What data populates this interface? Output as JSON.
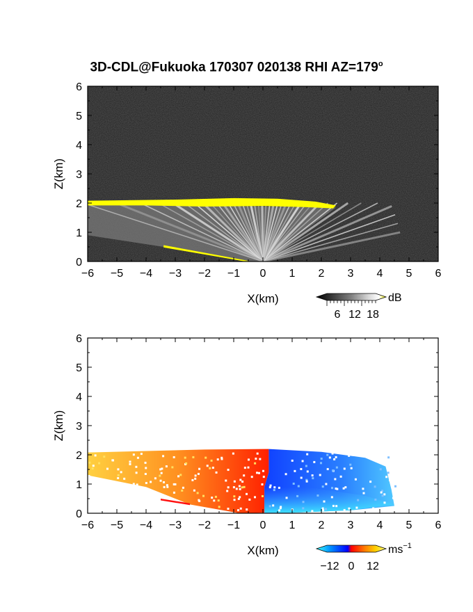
{
  "figure": {
    "title": "3D-CDL@Fukuoka 170307 020138 RHI AZ=179",
    "title_superscript": "o"
  },
  "chart_data": [
    {
      "type": "heatmap",
      "panel": "top",
      "quantity": "backscatter intensity",
      "xlabel": "X(km)",
      "ylabel": "Z(km)",
      "xlim": [
        -6,
        6
      ],
      "ylim": [
        0,
        6
      ],
      "xticks": [
        "−6",
        "−5",
        "−4",
        "−3",
        "−2",
        "−1",
        "0",
        "1",
        "2",
        "3",
        "4",
        "5",
        "6"
      ],
      "yticks": [
        "0",
        "1",
        "2",
        "3",
        "4",
        "5",
        "6"
      ],
      "background": "noise (black/dark gray)",
      "features": [
        {
          "name": "cloud base layer",
          "color": "#ffff00",
          "x_range": [
            -6,
            2.5
          ],
          "z": 2.0
        },
        {
          "name": "surface echo",
          "color": "#ffff00",
          "x_range": [
            -3.4,
            -0.4
          ],
          "z_range": [
            0.5,
            0.0
          ]
        },
        {
          "name": "radial lidar beams",
          "color": "#cccccc",
          "origin": [
            0,
            0
          ]
        }
      ],
      "colorbar": {
        "ticks": [
          "6",
          "12",
          "18"
        ],
        "unit": "dB",
        "colors": [
          "#000000",
          "#404040",
          "#808080",
          "#c0c0c0",
          "#ffffff",
          "#ffff00"
        ]
      }
    },
    {
      "type": "heatmap",
      "panel": "bottom",
      "quantity": "radial velocity",
      "xlabel": "X(km)",
      "ylabel": "Z(km)",
      "xlim": [
        -6,
        6
      ],
      "ylim": [
        0,
        6
      ],
      "xticks": [
        "−6",
        "−5",
        "−4",
        "−3",
        "−2",
        "−1",
        "0",
        "1",
        "2",
        "3",
        "4",
        "5",
        "6"
      ],
      "yticks": [
        "0",
        "1",
        "2",
        "3",
        "4",
        "5",
        "6"
      ],
      "features": [
        {
          "name": "positive velocity region",
          "colors": [
            "#ff2000",
            "#ff8000",
            "#ffd040"
          ],
          "x_range": [
            -6,
            0.2
          ],
          "z_range": [
            0,
            2.2
          ]
        },
        {
          "name": "negative velocity region",
          "colors": [
            "#1040ff",
            "#2080ff",
            "#40e0ff"
          ],
          "x_range": [
            0.2,
            4.5
          ],
          "z_range": [
            0,
            2.2
          ]
        }
      ],
      "colorbar": {
        "ticks": [
          "−12",
          "0",
          "12"
        ],
        "unit": "ms",
        "unit_exponent": "−1",
        "colors": [
          "#40ffff",
          "#0080ff",
          "#0000ff",
          "#ff0000",
          "#ff8000",
          "#ffd000",
          "#ffff60"
        ]
      }
    }
  ]
}
